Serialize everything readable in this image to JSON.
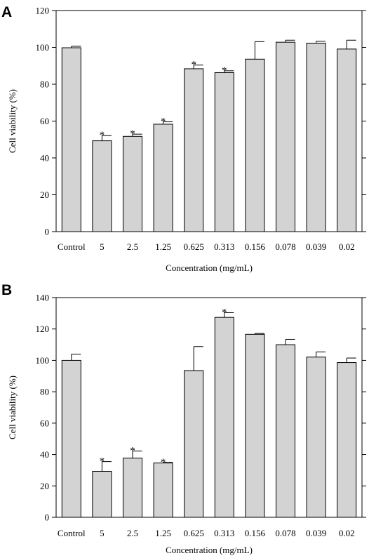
{
  "colors": {
    "bar_fill": "#d3d3d3",
    "stroke": "#000000",
    "background": "#ffffff"
  },
  "chart_data": [
    {
      "type": "bar",
      "panel": "A",
      "categories": [
        "Control",
        "5",
        "2.5",
        "1.25",
        "0.625",
        "0.313",
        "0.156",
        "0.078",
        "0.039",
        "0.02"
      ],
      "values": [
        99.8,
        49.3,
        51.7,
        58.3,
        88.4,
        86.3,
        93.6,
        102.8,
        102.3,
        99.1
      ],
      "errors": [
        0.8,
        2.8,
        1.2,
        1.3,
        2.0,
        1.0,
        9.5,
        1.1,
        1.0,
        4.8
      ],
      "significant": [
        "",
        "*",
        "*",
        "*",
        "*",
        "*",
        "",
        "",
        "",
        ""
      ],
      "xlabel": "Concentration (mg/mL)",
      "ylabel": "Cell viability (%)",
      "ylim": [
        0,
        120
      ],
      "yticks": [
        0,
        20,
        40,
        60,
        80,
        100,
        120
      ],
      "grid": false,
      "legend": "none"
    },
    {
      "type": "bar",
      "panel": "B",
      "categories": [
        "Control",
        "5",
        "2.5",
        "1.25",
        "0.625",
        "0.313",
        "0.156",
        "0.078",
        "0.039",
        "0.02"
      ],
      "values": [
        100.0,
        29.3,
        37.7,
        34.6,
        93.5,
        127.4,
        116.6,
        110.0,
        102.1,
        98.6
      ],
      "errors": [
        4.0,
        6.2,
        4.5,
        0.4,
        15.3,
        3.0,
        0.6,
        3.4,
        3.3,
        2.9
      ],
      "significant": [
        "",
        "*",
        "*",
        "*",
        "",
        "*",
        "",
        "",
        "",
        ""
      ],
      "xlabel": "Concentration (mg/mL)",
      "ylabel": "Cell viability (%)",
      "ylim": [
        0,
        140
      ],
      "yticks": [
        0,
        20,
        40,
        60,
        80,
        100,
        120,
        140
      ],
      "grid": false,
      "legend": "none"
    }
  ]
}
